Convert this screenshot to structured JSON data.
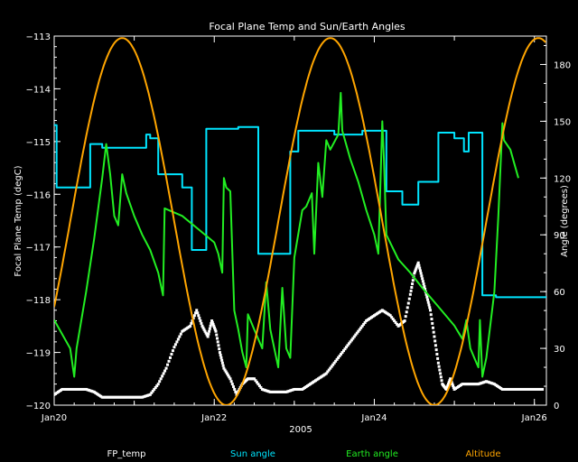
{
  "chart_data": {
    "type": "line",
    "title": "Focal Plane Temp and Sun/Earth Angles",
    "xlabel": "2005",
    "ylabel_left": "Focal Plane Temp (degC)",
    "ylabel_right": "Angle (degrees)",
    "xlim": [
      0,
      6.15
    ],
    "x_ticks": [
      {
        "x": 0,
        "label": "Jan20"
      },
      {
        "x": 2,
        "label": "Jan22"
      },
      {
        "x": 4,
        "label": "Jan24"
      },
      {
        "x": 6,
        "label": "Jan26"
      }
    ],
    "ylim_left": [
      -120,
      -113
    ],
    "yticks_left": [
      -113,
      -114,
      -115,
      -116,
      -117,
      -118,
      -119,
      -120
    ],
    "ylim_right": [
      0,
      195
    ],
    "yticks_right": [
      0,
      30,
      60,
      90,
      120,
      150,
      180
    ],
    "series": [
      {
        "name": "FP_temp",
        "axis": "left",
        "style": "points",
        "color": "#ffffff",
        "points": [
          [
            0.0,
            -119.8
          ],
          [
            0.1,
            -119.7
          ],
          [
            0.2,
            -119.7
          ],
          [
            0.3,
            -119.7
          ],
          [
            0.4,
            -119.7
          ],
          [
            0.5,
            -119.75
          ],
          [
            0.6,
            -119.85
          ],
          [
            0.7,
            -119.85
          ],
          [
            0.8,
            -119.85
          ],
          [
            0.9,
            -119.85
          ],
          [
            1.0,
            -119.85
          ],
          [
            1.1,
            -119.85
          ],
          [
            1.2,
            -119.8
          ],
          [
            1.3,
            -119.6
          ],
          [
            1.4,
            -119.3
          ],
          [
            1.5,
            -118.9
          ],
          [
            1.6,
            -118.6
          ],
          [
            1.7,
            -118.5
          ],
          [
            1.78,
            -118.2
          ],
          [
            1.85,
            -118.5
          ],
          [
            1.92,
            -118.7
          ],
          [
            1.97,
            -118.4
          ],
          [
            2.02,
            -118.6
          ],
          [
            2.07,
            -119.0
          ],
          [
            2.12,
            -119.3
          ],
          [
            2.2,
            -119.5
          ],
          [
            2.28,
            -119.8
          ],
          [
            2.35,
            -119.6
          ],
          [
            2.42,
            -119.5
          ],
          [
            2.5,
            -119.5
          ],
          [
            2.6,
            -119.7
          ],
          [
            2.7,
            -119.75
          ],
          [
            2.8,
            -119.75
          ],
          [
            2.9,
            -119.75
          ],
          [
            3.0,
            -119.7
          ],
          [
            3.1,
            -119.7
          ],
          [
            3.2,
            -119.6
          ],
          [
            3.3,
            -119.5
          ],
          [
            3.4,
            -119.4
          ],
          [
            3.5,
            -119.2
          ],
          [
            3.6,
            -119.0
          ],
          [
            3.7,
            -118.8
          ],
          [
            3.8,
            -118.6
          ],
          [
            3.9,
            -118.4
          ],
          [
            4.0,
            -118.3
          ],
          [
            4.1,
            -118.2
          ],
          [
            4.2,
            -118.3
          ],
          [
            4.3,
            -118.5
          ],
          [
            4.38,
            -118.4
          ],
          [
            4.45,
            -117.9
          ],
          [
            4.5,
            -117.5
          ],
          [
            4.55,
            -117.3
          ],
          [
            4.6,
            -117.6
          ],
          [
            4.65,
            -117.9
          ],
          [
            4.7,
            -118.2
          ],
          [
            4.75,
            -118.7
          ],
          [
            4.8,
            -119.2
          ],
          [
            4.85,
            -119.6
          ],
          [
            4.9,
            -119.7
          ],
          [
            4.95,
            -119.5
          ],
          [
            5.0,
            -119.7
          ],
          [
            5.1,
            -119.6
          ],
          [
            5.2,
            -119.6
          ],
          [
            5.3,
            -119.6
          ],
          [
            5.4,
            -119.55
          ],
          [
            5.5,
            -119.6
          ],
          [
            5.6,
            -119.7
          ],
          [
            5.7,
            -119.7
          ],
          [
            5.8,
            -119.7
          ],
          [
            5.9,
            -119.7
          ],
          [
            6.0,
            -119.7
          ],
          [
            6.1,
            -119.7
          ]
        ]
      },
      {
        "name": "Sun angle",
        "axis": "right",
        "style": "line",
        "color": "#00e5ff",
        "points": [
          [
            0.0,
            148
          ],
          [
            0.03,
            148
          ],
          [
            0.03,
            115
          ],
          [
            0.45,
            115
          ],
          [
            0.45,
            138
          ],
          [
            0.6,
            138
          ],
          [
            0.6,
            136
          ],
          [
            1.15,
            136
          ],
          [
            1.15,
            143
          ],
          [
            1.2,
            143
          ],
          [
            1.2,
            141
          ],
          [
            1.3,
            141
          ],
          [
            1.3,
            122
          ],
          [
            1.6,
            122
          ],
          [
            1.6,
            115
          ],
          [
            1.72,
            115
          ],
          [
            1.72,
            82
          ],
          [
            1.9,
            82
          ],
          [
            1.9,
            146
          ],
          [
            2.3,
            146
          ],
          [
            2.3,
            147
          ],
          [
            2.55,
            147
          ],
          [
            2.55,
            80
          ],
          [
            2.95,
            80
          ],
          [
            2.95,
            134
          ],
          [
            3.05,
            134
          ],
          [
            3.05,
            145
          ],
          [
            3.5,
            145
          ],
          [
            3.5,
            143
          ],
          [
            3.85,
            143
          ],
          [
            3.85,
            145
          ],
          [
            4.15,
            145
          ],
          [
            4.15,
            113
          ],
          [
            4.35,
            113
          ],
          [
            4.35,
            106
          ],
          [
            4.55,
            106
          ],
          [
            4.55,
            118
          ],
          [
            4.8,
            118
          ],
          [
            4.8,
            144
          ],
          [
            5.0,
            144
          ],
          [
            5.0,
            141
          ],
          [
            5.12,
            141
          ],
          [
            5.12,
            134
          ],
          [
            5.18,
            134
          ],
          [
            5.18,
            144
          ],
          [
            5.35,
            144
          ],
          [
            5.35,
            58
          ],
          [
            5.52,
            58
          ],
          [
            5.52,
            57
          ],
          [
            6.15,
            57
          ]
        ]
      },
      {
        "name": "Earth angle",
        "axis": "right",
        "style": "line",
        "color": "#22ee22",
        "points": [
          [
            0.0,
            45
          ],
          [
            0.2,
            30
          ],
          [
            0.25,
            15
          ],
          [
            0.28,
            30
          ],
          [
            0.4,
            60
          ],
          [
            0.5,
            88
          ],
          [
            0.6,
            120
          ],
          [
            0.65,
            138
          ],
          [
            0.7,
            122
          ],
          [
            0.75,
            100
          ],
          [
            0.8,
            95
          ],
          [
            0.85,
            122
          ],
          [
            0.9,
            112
          ],
          [
            1.0,
            100
          ],
          [
            1.1,
            90
          ],
          [
            1.2,
            82
          ],
          [
            1.3,
            70
          ],
          [
            1.35,
            60
          ],
          [
            1.36,
            58
          ],
          [
            1.38,
            104
          ],
          [
            1.6,
            100
          ],
          [
            1.8,
            93
          ],
          [
            2.0,
            86
          ],
          [
            2.05,
            80
          ],
          [
            2.1,
            70
          ],
          [
            2.12,
            120
          ],
          [
            2.15,
            115
          ],
          [
            2.2,
            113
          ],
          [
            2.25,
            50
          ],
          [
            2.3,
            40
          ],
          [
            2.35,
            28
          ],
          [
            2.4,
            20
          ],
          [
            2.42,
            48
          ],
          [
            2.5,
            40
          ],
          [
            2.6,
            30
          ],
          [
            2.65,
            65
          ],
          [
            2.7,
            40
          ],
          [
            2.75,
            30
          ],
          [
            2.8,
            20
          ],
          [
            2.85,
            62
          ],
          [
            2.9,
            30
          ],
          [
            2.95,
            25
          ],
          [
            3.0,
            78
          ],
          [
            3.1,
            103
          ],
          [
            3.15,
            105
          ],
          [
            3.22,
            112
          ],
          [
            3.25,
            80
          ],
          [
            3.3,
            128
          ],
          [
            3.35,
            110
          ],
          [
            3.4,
            140
          ],
          [
            3.45,
            135
          ],
          [
            3.55,
            143
          ],
          [
            3.58,
            165
          ],
          [
            3.6,
            145
          ],
          [
            3.7,
            130
          ],
          [
            3.8,
            118
          ],
          [
            3.9,
            103
          ],
          [
            4.0,
            90
          ],
          [
            4.05,
            80
          ],
          [
            4.1,
            150
          ],
          [
            4.12,
            130
          ],
          [
            4.15,
            90
          ],
          [
            4.3,
            77
          ],
          [
            4.45,
            70
          ],
          [
            4.6,
            62
          ],
          [
            4.8,
            52
          ],
          [
            5.0,
            42
          ],
          [
            5.1,
            35
          ],
          [
            5.15,
            45
          ],
          [
            5.2,
            30
          ],
          [
            5.25,
            25
          ],
          [
            5.3,
            20
          ],
          [
            5.32,
            45
          ],
          [
            5.35,
            15
          ],
          [
            5.4,
            25
          ],
          [
            5.5,
            60
          ],
          [
            5.55,
            100
          ],
          [
            5.6,
            149
          ],
          [
            5.62,
            140
          ],
          [
            5.7,
            135
          ],
          [
            5.8,
            120
          ]
        ]
      },
      {
        "name": "Altitude",
        "axis": "right",
        "style": "line",
        "color": "#ffa500",
        "periodic": {
          "center": 97,
          "amplitude": 97,
          "peak_x": 0.85,
          "period": 2.6
        }
      }
    ]
  }
}
